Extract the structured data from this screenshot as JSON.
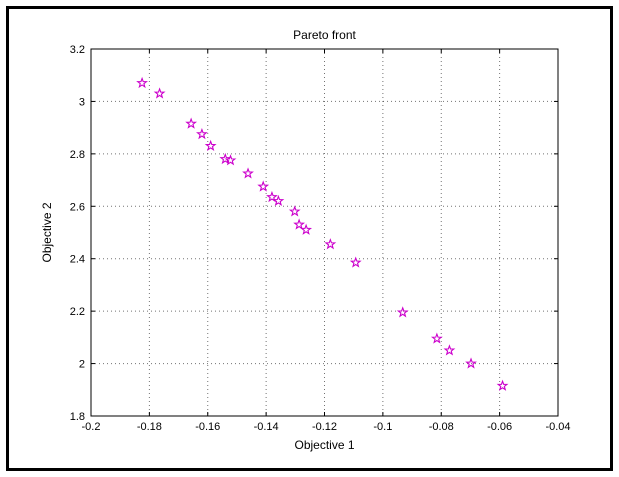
{
  "chart_data": {
    "type": "scatter",
    "title": "Pareto front",
    "xlabel": "Objective 1",
    "ylabel": "Objective 2",
    "xlim": [
      -0.2,
      -0.04
    ],
    "ylim": [
      1.8,
      3.2
    ],
    "xticks": [
      -0.2,
      -0.18,
      -0.16,
      -0.14,
      -0.12,
      -0.1,
      -0.08,
      -0.06,
      -0.04
    ],
    "yticks": [
      1.8,
      2,
      2.2,
      2.4,
      2.6,
      2.8,
      3,
      3.2
    ],
    "xtick_labels": [
      "-0.2",
      "-0.18",
      "-0.16",
      "-0.14",
      "-0.12",
      "-0.1",
      "-0.08",
      "-0.06",
      "-0.04"
    ],
    "ytick_labels": [
      "1.8",
      "2",
      "2.2",
      "2.4",
      "2.6",
      "2.8",
      "3",
      "3.2"
    ],
    "grid": true,
    "marker": "pentagram",
    "marker_color": "#cc00cc",
    "points": [
      {
        "x": -0.1825,
        "y": 3.07
      },
      {
        "x": -0.1765,
        "y": 3.03
      },
      {
        "x": -0.1657,
        "y": 2.915
      },
      {
        "x": -0.162,
        "y": 2.875
      },
      {
        "x": -0.159,
        "y": 2.83
      },
      {
        "x": -0.154,
        "y": 2.78
      },
      {
        "x": -0.1522,
        "y": 2.775
      },
      {
        "x": -0.1462,
        "y": 2.725
      },
      {
        "x": -0.141,
        "y": 2.675
      },
      {
        "x": -0.138,
        "y": 2.635
      },
      {
        "x": -0.1358,
        "y": 2.62
      },
      {
        "x": -0.1302,
        "y": 2.58
      },
      {
        "x": -0.1287,
        "y": 2.53
      },
      {
        "x": -0.1263,
        "y": 2.51
      },
      {
        "x": -0.118,
        "y": 2.455
      },
      {
        "x": -0.1093,
        "y": 2.385
      },
      {
        "x": -0.0932,
        "y": 2.195
      },
      {
        "x": -0.0815,
        "y": 2.095
      },
      {
        "x": -0.0772,
        "y": 2.05
      },
      {
        "x": -0.0698,
        "y": 2.0
      },
      {
        "x": -0.059,
        "y": 1.915
      }
    ]
  }
}
